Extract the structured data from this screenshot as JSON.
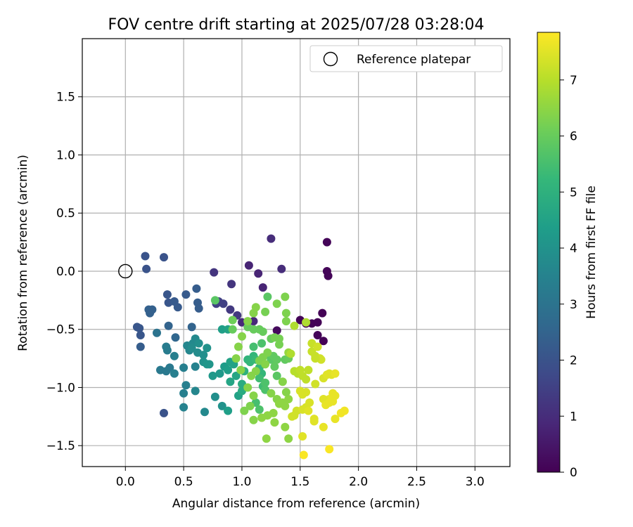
{
  "chart_data": {
    "type": "scatter",
    "title": "FOV centre drift starting at 2025/07/28 03:28:04",
    "xlabel": "Angular distance from reference (arcmin)",
    "ylabel": "Rotation from reference (arcmin)",
    "xlim": [
      -0.37,
      3.3
    ],
    "ylim": [
      -1.68,
      2.0
    ],
    "x_ticks": [
      "0.0",
      "0.5",
      "1.0",
      "1.5",
      "2.0",
      "2.5",
      "3.0"
    ],
    "y_ticks": [
      "−1.5",
      "−1.0",
      "−0.5",
      "0.0",
      "0.5",
      "1.0",
      "1.5"
    ],
    "grid": true,
    "legend": {
      "placement": "top-right",
      "entries": [
        "Reference platepar"
      ]
    },
    "reference_point": {
      "x": 0.0,
      "y": 0.0,
      "marker": "open-circle"
    },
    "colorbar": {
      "label": "Hours from first FF file",
      "colormap": "viridis",
      "range": [
        0,
        7.85
      ],
      "ticks": [
        "0",
        "1",
        "2",
        "3",
        "4",
        "5",
        "6",
        "7"
      ]
    },
    "series": [
      {
        "points": [
          [
            1.5,
            -0.42,
            0.05
          ],
          [
            1.55,
            -0.45,
            0.05
          ],
          [
            1.6,
            -0.45,
            0.05
          ],
          [
            1.65,
            -0.44,
            0.05
          ],
          [
            1.69,
            -0.36,
            0.05
          ],
          [
            1.7,
            -0.6,
            0.05
          ],
          [
            1.73,
            0.25,
            0.1
          ],
          [
            1.73,
            0.0,
            0.1
          ],
          [
            1.74,
            -0.04,
            0.1
          ],
          [
            1.65,
            -0.55,
            0.1
          ],
          [
            1.3,
            -0.51,
            0.2
          ],
          [
            1.06,
            0.05,
            0.8
          ],
          [
            1.14,
            -0.02,
            0.8
          ],
          [
            1.25,
            0.28,
            1.0
          ],
          [
            1.34,
            0.02,
            1.0
          ],
          [
            1.18,
            -0.14,
            0.8
          ],
          [
            0.91,
            -0.11,
            1.2
          ],
          [
            0.76,
            -0.01,
            1.2
          ],
          [
            1.1,
            -0.43,
            0.9
          ],
          [
            1.0,
            -0.44,
            0.9
          ],
          [
            0.9,
            -0.33,
            1.3
          ],
          [
            0.84,
            -0.28,
            1.5
          ],
          [
            0.78,
            -0.28,
            1.5
          ],
          [
            0.8,
            -0.26,
            1.5
          ],
          [
            0.96,
            -0.38,
            1.3
          ],
          [
            0.17,
            0.13,
            2.0
          ],
          [
            0.33,
            0.12,
            2.0
          ],
          [
            0.18,
            0.02,
            2.0
          ],
          [
            0.1,
            -0.48,
            2.1
          ],
          [
            0.12,
            -0.49,
            2.1
          ],
          [
            0.13,
            -0.55,
            2.1
          ],
          [
            0.13,
            -0.65,
            2.3
          ],
          [
            0.2,
            -0.33,
            2.4
          ],
          [
            0.21,
            -0.36,
            2.4
          ],
          [
            0.23,
            -0.33,
            2.4
          ],
          [
            0.36,
            -0.2,
            2.1
          ],
          [
            0.37,
            -0.27,
            2.1
          ],
          [
            0.42,
            -0.26,
            2.2
          ],
          [
            0.45,
            -0.31,
            2.2
          ],
          [
            0.52,
            -0.2,
            2.2
          ],
          [
            0.61,
            -0.15,
            2.3
          ],
          [
            0.62,
            -0.27,
            2.3
          ],
          [
            0.63,
            -0.32,
            2.3
          ],
          [
            0.37,
            -0.47,
            2.5
          ],
          [
            0.57,
            -0.48,
            2.5
          ],
          [
            0.33,
            -1.22,
            2.0
          ],
          [
            0.43,
            -0.57,
            2.6
          ],
          [
            0.27,
            -0.53,
            3.0
          ],
          [
            0.35,
            -0.65,
            3.3
          ],
          [
            0.36,
            -0.68,
            3.3
          ],
          [
            0.3,
            -0.85,
            3.2
          ],
          [
            0.35,
            -0.86,
            3.2
          ],
          [
            0.38,
            -0.83,
            3.2
          ],
          [
            0.42,
            -0.73,
            3.4
          ],
          [
            0.42,
            -0.88,
            3.4
          ],
          [
            0.5,
            -0.83,
            3.4
          ],
          [
            0.52,
            -0.98,
            3.4
          ],
          [
            0.5,
            -1.05,
            3.4
          ],
          [
            0.5,
            -1.17,
            3.5
          ],
          [
            0.53,
            -0.64,
            3.6
          ],
          [
            0.55,
            -0.68,
            3.6
          ],
          [
            0.58,
            -0.62,
            3.7
          ],
          [
            0.6,
            -0.58,
            3.7
          ],
          [
            0.57,
            -0.66,
            3.8
          ],
          [
            0.62,
            -0.7,
            3.8
          ],
          [
            0.63,
            -0.62,
            3.9
          ],
          [
            0.67,
            -0.72,
            3.9
          ],
          [
            0.7,
            -0.66,
            4.0
          ],
          [
            0.67,
            -0.78,
            4.0
          ],
          [
            0.7,
            -0.8,
            4.1
          ],
          [
            0.72,
            -0.8,
            4.1
          ],
          [
            0.6,
            -0.82,
            3.5
          ],
          [
            0.6,
            -1.03,
            3.6
          ],
          [
            0.68,
            -1.21,
            3.7
          ],
          [
            0.77,
            -1.08,
            3.9
          ],
          [
            0.75,
            -0.9,
            4.2
          ],
          [
            0.83,
            -1.16,
            4.0
          ],
          [
            0.81,
            -0.88,
            4.2
          ],
          [
            0.85,
            -0.82,
            4.3
          ],
          [
            0.88,
            -0.85,
            4.4
          ],
          [
            0.9,
            -0.78,
            4.5
          ],
          [
            0.93,
            -0.8,
            4.5
          ],
          [
            0.9,
            -0.95,
            4.6
          ],
          [
            0.95,
            -0.9,
            4.6
          ],
          [
            0.97,
            -1.07,
            4.5
          ],
          [
            0.88,
            -1.2,
            4.4
          ],
          [
            0.83,
            -0.5,
            4.4
          ],
          [
            0.88,
            -0.5,
            4.5
          ],
          [
            1.0,
            -0.97,
            4.8
          ],
          [
            1.0,
            -1.03,
            4.8
          ],
          [
            1.02,
            -0.86,
            5.0
          ],
          [
            1.05,
            -0.76,
            5.1
          ],
          [
            1.07,
            -0.78,
            5.2
          ],
          [
            1.1,
            -0.73,
            5.2
          ],
          [
            1.12,
            -0.76,
            5.3
          ],
          [
            1.15,
            -0.83,
            5.2
          ],
          [
            1.17,
            -0.88,
            5.2
          ],
          [
            1.1,
            -0.65,
            5.5
          ],
          [
            1.17,
            -0.62,
            5.6
          ],
          [
            1.15,
            -0.92,
            5.4
          ],
          [
            1.18,
            -0.99,
            5.4
          ],
          [
            1.2,
            -0.96,
            5.6
          ],
          [
            1.2,
            -1.02,
            5.6
          ],
          [
            1.12,
            -1.13,
            5.5
          ],
          [
            1.15,
            -1.19,
            5.6
          ],
          [
            1.23,
            -0.72,
            5.8
          ],
          [
            1.25,
            -0.76,
            5.8
          ],
          [
            1.27,
            -0.73,
            5.9
          ],
          [
            1.3,
            -0.76,
            5.9
          ],
          [
            1.28,
            -0.82,
            5.9
          ],
          [
            1.3,
            -0.9,
            5.8
          ],
          [
            1.37,
            -0.76,
            5.9
          ],
          [
            1.4,
            -0.75,
            6.0
          ],
          [
            1.22,
            -0.22,
            5.8
          ],
          [
            1.25,
            -0.58,
            6.0
          ],
          [
            1.18,
            -0.52,
            6.0
          ],
          [
            1.15,
            -0.5,
            6.0
          ],
          [
            1.1,
            -0.5,
            6.0
          ],
          [
            1.05,
            -0.48,
            6.0
          ],
          [
            0.77,
            -0.25,
            5.8
          ],
          [
            0.92,
            -0.5,
            6.0
          ],
          [
            0.92,
            -0.42,
            6.1
          ],
          [
            1.2,
            -0.35,
            6.2
          ],
          [
            1.3,
            -0.28,
            6.3
          ],
          [
            1.37,
            -0.22,
            6.3
          ],
          [
            1.38,
            -0.36,
            6.3
          ],
          [
            1.38,
            -0.43,
            6.3
          ],
          [
            1.28,
            -0.57,
            6.2
          ],
          [
            1.32,
            -0.58,
            6.2
          ],
          [
            1.32,
            -0.63,
            6.2
          ],
          [
            1.22,
            -0.7,
            6.3
          ],
          [
            1.18,
            -0.74,
            6.3
          ],
          [
            1.15,
            -0.77,
            6.3
          ],
          [
            1.2,
            -0.8,
            6.4
          ],
          [
            1.12,
            -0.86,
            6.4
          ],
          [
            1.08,
            -0.9,
            6.4
          ],
          [
            1.05,
            -1.0,
            6.4
          ],
          [
            1.1,
            -1.07,
            6.4
          ],
          [
            1.07,
            -1.16,
            6.3
          ],
          [
            1.02,
            -1.2,
            6.3
          ],
          [
            1.1,
            -1.28,
            6.4
          ],
          [
            1.17,
            -1.26,
            6.5
          ],
          [
            1.22,
            -1.24,
            6.5
          ],
          [
            1.27,
            -1.22,
            6.5
          ],
          [
            1.28,
            -1.3,
            6.5
          ],
          [
            1.25,
            -1.05,
            6.4
          ],
          [
            1.3,
            -1.1,
            6.4
          ],
          [
            1.32,
            -1.14,
            6.5
          ],
          [
            1.35,
            -1.13,
            6.5
          ],
          [
            1.37,
            -1.16,
            6.5
          ],
          [
            1.4,
            -1.1,
            6.5
          ],
          [
            1.38,
            -1.04,
            6.4
          ],
          [
            1.35,
            -0.95,
            6.4
          ],
          [
            1.37,
            -1.34,
            6.5
          ],
          [
            1.4,
            -1.44,
            6.5
          ],
          [
            1.21,
            -1.44,
            6.5
          ],
          [
            0.99,
            -0.85,
            6.4
          ],
          [
            0.95,
            -0.75,
            6.4
          ],
          [
            0.97,
            -0.65,
            6.4
          ],
          [
            1.0,
            -0.56,
            6.4
          ],
          [
            1.05,
            -0.43,
            6.4
          ],
          [
            1.1,
            -0.36,
            6.4
          ],
          [
            1.12,
            -0.31,
            6.4
          ],
          [
            1.4,
            -0.7,
            6.6
          ],
          [
            1.42,
            -0.71,
            6.9
          ],
          [
            1.45,
            -0.86,
            7.0
          ],
          [
            1.48,
            -0.88,
            7.0
          ],
          [
            1.5,
            -0.85,
            7.1
          ],
          [
            1.52,
            -0.9,
            7.1
          ],
          [
            1.55,
            -0.93,
            7.1
          ],
          [
            1.57,
            -0.85,
            7.1
          ],
          [
            1.6,
            -0.69,
            7.2
          ],
          [
            1.6,
            -0.62,
            7.2
          ],
          [
            1.63,
            -0.73,
            7.2
          ],
          [
            1.63,
            -0.97,
            7.3
          ],
          [
            1.67,
            -0.75,
            7.3
          ],
          [
            1.68,
            -0.76,
            7.3
          ],
          [
            1.7,
            -0.92,
            7.4
          ],
          [
            1.73,
            -0.89,
            7.5
          ],
          [
            1.75,
            -0.88,
            7.5
          ],
          [
            1.77,
            -0.89,
            7.5
          ],
          [
            1.8,
            -0.88,
            7.6
          ],
          [
            1.78,
            -1.05,
            7.6
          ],
          [
            1.8,
            -1.07,
            7.6
          ],
          [
            1.75,
            -1.1,
            7.6
          ],
          [
            1.7,
            -1.1,
            7.5
          ],
          [
            1.72,
            -1.15,
            7.6
          ],
          [
            1.75,
            -1.13,
            7.6
          ],
          [
            1.78,
            -1.12,
            7.6
          ],
          [
            1.85,
            -1.22,
            7.7
          ],
          [
            1.88,
            -1.2,
            7.7
          ],
          [
            1.8,
            -1.27,
            7.6
          ],
          [
            1.7,
            -1.34,
            7.6
          ],
          [
            1.62,
            -1.29,
            7.5
          ],
          [
            1.58,
            -1.13,
            7.4
          ],
          [
            1.55,
            -1.17,
            7.4
          ],
          [
            1.5,
            -1.03,
            7.4
          ],
          [
            1.52,
            -1.06,
            7.4
          ],
          [
            1.55,
            -1.04,
            7.4
          ],
          [
            1.47,
            -1.2,
            7.3
          ],
          [
            1.45,
            -1.24,
            7.3
          ],
          [
            1.43,
            -1.25,
            7.3
          ],
          [
            1.52,
            -1.42,
            7.5
          ],
          [
            1.53,
            -1.58,
            7.8
          ],
          [
            1.75,
            -1.53,
            7.8
          ],
          [
            1.62,
            -1.27,
            7.5
          ],
          [
            1.65,
            -0.65,
            7.3
          ],
          [
            1.45,
            -0.47,
            6.9
          ],
          [
            1.55,
            -0.44,
            6.9
          ],
          [
            1.63,
            -0.75,
            7.2
          ],
          [
            1.52,
            -1.19,
            7.4
          ],
          [
            1.57,
            -1.2,
            7.5
          ]
        ]
      }
    ]
  }
}
